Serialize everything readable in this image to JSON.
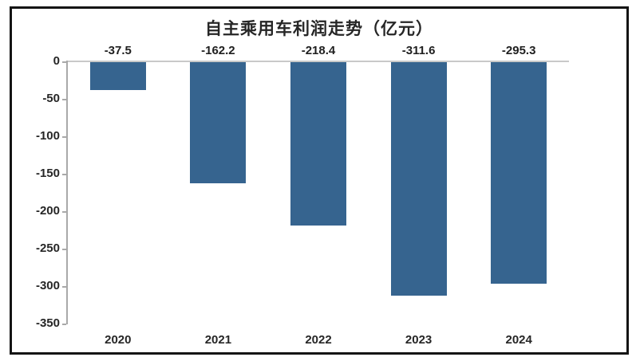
{
  "chart_data": {
    "type": "bar",
    "title": "自主乘用车利润走势（亿元）",
    "categories": [
      "2020",
      "2021",
      "2022",
      "2023",
      "2024"
    ],
    "values": [
      -37.5,
      -162.2,
      -218.4,
      -311.6,
      -295.3
    ],
    "value_labels": [
      "-37.5",
      "-162.2",
      "-218.4",
      "-311.6",
      "-295.3"
    ],
    "xlabel": "",
    "ylabel": "",
    "ylim": [
      -350,
      0
    ],
    "yticks": [
      0,
      -50,
      -100,
      -150,
      -200,
      -250,
      -300,
      -350
    ],
    "grid": false,
    "legend": false,
    "colors": {
      "bar": "#36648F",
      "axis_line": "#a9a9a9",
      "zero_line": "#c9c9c9",
      "text": "#262626",
      "frame_border": "#141414",
      "background": "#ffffff"
    }
  }
}
